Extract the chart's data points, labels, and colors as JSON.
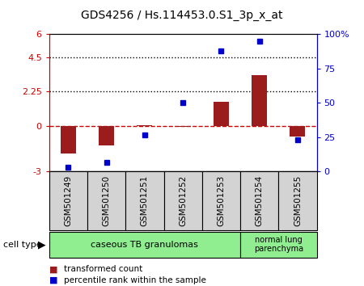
{
  "title": "GDS4256 / Hs.114453.0.S1_3p_x_at",
  "samples": [
    "GSM501249",
    "GSM501250",
    "GSM501251",
    "GSM501252",
    "GSM501253",
    "GSM501254",
    "GSM501255"
  ],
  "transformed_count": [
    -1.8,
    -1.3,
    0.05,
    -0.05,
    1.6,
    3.3,
    -0.7
  ],
  "percentile_rank": [
    3,
    7,
    27,
    50,
    88,
    95,
    23
  ],
  "bar_color": "#9B1C1C",
  "dot_color": "#0000CC",
  "ylim_left": [
    -3,
    6
  ],
  "ylim_right": [
    0,
    100
  ],
  "yticks_left": [
    -3,
    0,
    2.25,
    4.5,
    6
  ],
  "ytick_labels_left": [
    "-3",
    "0",
    "2.25",
    "4.5",
    "6"
  ],
  "yticks_right": [
    0,
    25,
    50,
    75,
    100
  ],
  "ytick_labels_right": [
    "0",
    "25",
    "50",
    "75",
    "100%"
  ],
  "hlines": [
    2.25,
    4.5
  ],
  "zero_line_color": "#CC0000",
  "group1_indices": [
    0,
    1,
    2,
    3,
    4
  ],
  "group2_indices": [
    5,
    6
  ],
  "group1_label": "caseous TB granulomas",
  "group2_label": "normal lung\nparenchyma",
  "group_color": "#90EE90",
  "sample_box_color": "#D3D3D3",
  "cell_type_label": "cell type",
  "legend_red_label": "transformed count",
  "legend_blue_label": "percentile rank within the sample",
  "bar_width": 0.4,
  "background_color": "#ffffff"
}
